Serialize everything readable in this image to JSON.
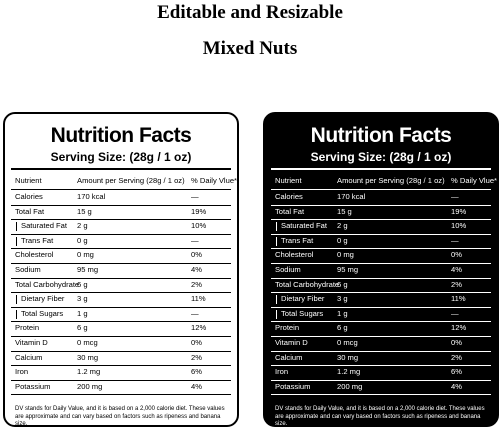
{
  "header": {
    "title": "Editable and Resizable",
    "subtitle": "Mixed Nuts"
  },
  "label": {
    "title": "Nutrition Facts",
    "serving": "Serving Size: (28g / 1 oz)",
    "columns": [
      "Nutrient",
      "Amount per Serving (28g / 1 oz)",
      "% Daily Vlue*"
    ],
    "rows": [
      {
        "name": "Calories",
        "amount": "170 kcal",
        "dv": "—",
        "sub": false
      },
      {
        "name": "Total Fat",
        "amount": "15 g",
        "dv": "19%",
        "sub": false
      },
      {
        "name": "Saturated Fat",
        "amount": "2 g",
        "dv": "10%",
        "sub": true
      },
      {
        "name": "Trans Fat",
        "amount": "0 g",
        "dv": "—",
        "sub": true
      },
      {
        "name": "Cholesterol",
        "amount": "0 mg",
        "dv": "0%",
        "sub": false
      },
      {
        "name": "Sodium",
        "amount": "95 mg",
        "dv": "4%",
        "sub": false
      },
      {
        "name": "Total Carbohydrate",
        "amount": "6 g",
        "dv": "2%",
        "sub": false
      },
      {
        "name": "Dietary Fiber",
        "amount": "3 g",
        "dv": "11%",
        "sub": true
      },
      {
        "name": "Total Sugars",
        "amount": "1 g",
        "dv": "—",
        "sub": true
      },
      {
        "name": "Protein",
        "amount": "6 g",
        "dv": "12%",
        "sub": false
      },
      {
        "name": "Vitamin D",
        "amount": "0 mcg",
        "dv": "0%",
        "sub": false
      },
      {
        "name": "Calcium",
        "amount": "30 mg",
        "dv": "2%",
        "sub": false
      },
      {
        "name": "Iron",
        "amount": "1.2 mg",
        "dv": "6%",
        "sub": false
      },
      {
        "name": "Potassium",
        "amount": "200 mg",
        "dv": "4%",
        "sub": false
      }
    ],
    "footnote": "DV stands for Daily Value, and it is based on a 2,000 calorie diet. These values are approximate and can vary based on factors such as ripeness and banana size."
  }
}
